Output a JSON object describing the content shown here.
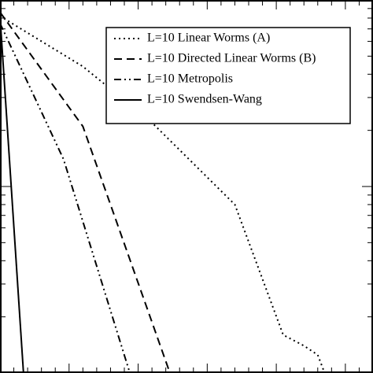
{
  "chart_data": {
    "type": "line",
    "xlim": [
      0,
      27
    ],
    "ylim": [
      0.01,
      1
    ],
    "ylog": true,
    "xticks": [
      0,
      1,
      2,
      3,
      4,
      5,
      6,
      7,
      8,
      9,
      10,
      11,
      12,
      13,
      14,
      15,
      16,
      17,
      18,
      19,
      20,
      21,
      22,
      23,
      24,
      25,
      26,
      27
    ],
    "yticks": [
      0.01,
      0.02,
      0.03,
      0.04,
      0.05,
      0.06,
      0.07,
      0.08,
      0.09,
      0.1,
      0.2,
      0.3,
      0.4,
      0.5,
      0.6,
      0.7,
      0.8,
      0.9,
      1
    ],
    "legend": "upper right",
    "series": [
      {
        "name": "L=10 Linear Worms (A)",
        "color": "#000000",
        "linestyle": "dotted",
        "x": [
          0,
          6,
          11,
          17,
          20.5,
          22,
          23,
          23.5
        ],
        "values": [
          0.82,
          0.44,
          0.22,
          0.08,
          0.016,
          0.014,
          0.0125,
          0.01
        ]
      },
      {
        "name": "L=10 Directed Linear Worms (B)",
        "color": "#000000",
        "linestyle": "dashed",
        "x": [
          0,
          6,
          12.3
        ],
        "values": [
          0.86,
          0.21,
          0.01
        ]
      },
      {
        "name": "L=10 Metropolis",
        "color": "#000000",
        "linestyle": "dashdotdot",
        "x": [
          0,
          4.6,
          9.4
        ],
        "values": [
          0.75,
          0.14,
          0.01
        ]
      },
      {
        "name": "L=10 Swendsen-Wang",
        "color": "#000000",
        "linestyle": "solid",
        "x": [
          0,
          1.7
        ],
        "values": [
          0.82,
          0.01
        ]
      }
    ]
  }
}
